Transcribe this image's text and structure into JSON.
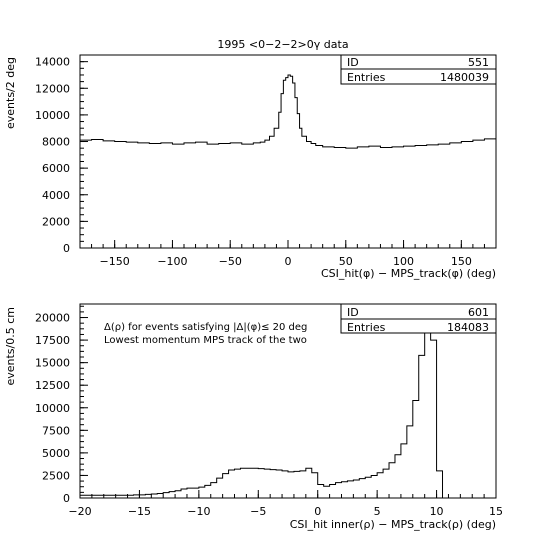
{
  "figure_title": "1995 <0−2−2>0γ data",
  "chart_data": [
    {
      "type": "histogram",
      "ylabel": "events/2 deg",
      "xlabel": "CSI_hit(φ) − MPS_track(φ) (deg)",
      "xlim": [
        -180,
        180
      ],
      "ylim": [
        0,
        14500
      ],
      "x_ticks": [
        -150,
        -100,
        -50,
        0,
        50,
        100,
        150
      ],
      "x_tick_labels": [
        "−150",
        "−100",
        "−50",
        "0",
        "50",
        "100",
        "150"
      ],
      "y_ticks": [
        0,
        2000,
        4000,
        6000,
        8000,
        10000,
        12000,
        14000
      ],
      "y_tick_labels": [
        "0",
        "2000",
        "4000",
        "6000",
        "8000",
        "10000",
        "12000",
        "14000"
      ],
      "stats": [
        {
          "label": "ID",
          "value": "551"
        },
        {
          "label": "Entries",
          "value": "1480039"
        }
      ],
      "bins": {
        "x": [
          -180,
          -170,
          -160,
          -150,
          -140,
          -130,
          -120,
          -110,
          -100,
          -90,
          -80,
          -70,
          -60,
          -50,
          -40,
          -30,
          -24,
          -20,
          -16,
          -12,
          -8,
          -6,
          -4,
          -2,
          0,
          2,
          4,
          6,
          8,
          10,
          12,
          16,
          20,
          24,
          30,
          40,
          50,
          60,
          70,
          80,
          90,
          100,
          110,
          120,
          130,
          140,
          150,
          160,
          170,
          180
        ],
        "y": [
          8100,
          8150,
          8050,
          8000,
          7950,
          7900,
          7850,
          7900,
          7800,
          7900,
          7950,
          7800,
          7850,
          7900,
          7800,
          7900,
          7950,
          8100,
          8400,
          9000,
          10200,
          11600,
          12600,
          12800,
          13000,
          12900,
          12400,
          11300,
          10100,
          9000,
          8400,
          8000,
          7850,
          7700,
          7600,
          7550,
          7500,
          7600,
          7650,
          7550,
          7600,
          7650,
          7700,
          7750,
          7800,
          7900,
          8000,
          8100,
          8200
        ]
      }
    },
    {
      "type": "histogram",
      "ylabel": "events/0.5 cm",
      "xlabel": "CSI_hit inner(ρ) − MPS_track(ρ) (deg)",
      "xlim": [
        -20,
        15
      ],
      "ylim": [
        0,
        21500
      ],
      "x_ticks": [
        -20,
        -15,
        -10,
        -5,
        0,
        5,
        10,
        15
      ],
      "x_tick_labels": [
        "−20",
        "−15",
        "−10",
        "−5",
        "0",
        "5",
        "10",
        "15"
      ],
      "y_ticks": [
        0,
        2500,
        5000,
        7500,
        10000,
        12500,
        15000,
        17500,
        20000
      ],
      "y_tick_labels": [
        "0",
        "2500",
        "5000",
        "7500",
        "10000",
        "12500",
        "15000",
        "17500",
        "20000"
      ],
      "annotations": [
        "Δ(ρ) for events satisfying |Δ|(φ)≤ 20 deg",
        "Lowest momentum MPS track of the two"
      ],
      "stats": [
        {
          "label": "ID",
          "value": "601"
        },
        {
          "label": "Entries",
          "value": "184083"
        }
      ],
      "bins": {
        "x": [
          -20,
          -19.5,
          -19,
          -18.5,
          -18,
          -17.5,
          -17,
          -16.5,
          -16,
          -15.5,
          -15,
          -14.5,
          -14,
          -13.5,
          -13,
          -12.5,
          -12,
          -11.5,
          -11,
          -10.5,
          -10,
          -9.5,
          -9,
          -8.5,
          -8,
          -7.5,
          -7,
          -6.5,
          -6,
          -5.5,
          -5,
          -4.5,
          -4,
          -3.5,
          -3,
          -2.5,
          -2,
          -1.5,
          -1,
          -0.5,
          0,
          0.5,
          1,
          1.5,
          2,
          2.5,
          3,
          3.5,
          4,
          4.5,
          5,
          5.5,
          6,
          6.5,
          7,
          7.5,
          8,
          8.5,
          9,
          9.5,
          10,
          10.5,
          11,
          11.5,
          12,
          12.5,
          13,
          13.5,
          14,
          14.5,
          15
        ],
        "y": [
          300,
          300,
          300,
          300,
          300,
          300,
          300,
          300,
          300,
          350,
          350,
          400,
          450,
          500,
          600,
          700,
          800,
          1000,
          1100,
          1100,
          1200,
          1400,
          1700,
          2200,
          2700,
          3100,
          3200,
          3300,
          3300,
          3300,
          3250,
          3200,
          3150,
          3100,
          3000,
          2900,
          2950,
          3000,
          3300,
          2800,
          1500,
          1300,
          1500,
          1700,
          1800,
          1900,
          2000,
          2150,
          2300,
          2500,
          2800,
          3200,
          3900,
          4800,
          6000,
          8000,
          10800,
          15800,
          19800,
          17500,
          3000,
          0,
          0,
          0,
          0,
          0,
          0,
          0,
          0,
          0
        ]
      }
    }
  ]
}
